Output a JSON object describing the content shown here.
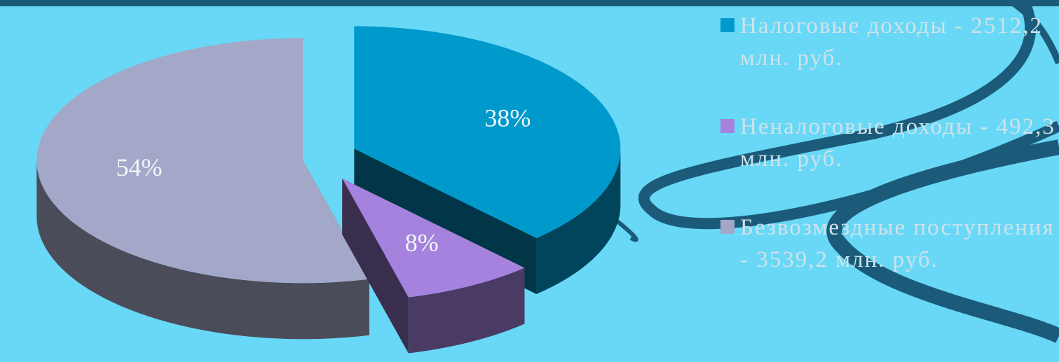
{
  "chart_data": {
    "type": "pie",
    "categories": [
      "Налоговые доходы - 2512,2 млн. руб.",
      "Неналоговые доходы - 492,3 млн. руб.",
      "Безвозмездные поступления - 3539,2 млн. руб."
    ],
    "values": [
      38,
      8,
      54
    ],
    "value_labels": [
      "38%",
      "8%",
      "54%"
    ],
    "colors": [
      "#0099cc",
      "#a582de",
      "#a4a8c8"
    ],
    "legend": "right"
  }
}
